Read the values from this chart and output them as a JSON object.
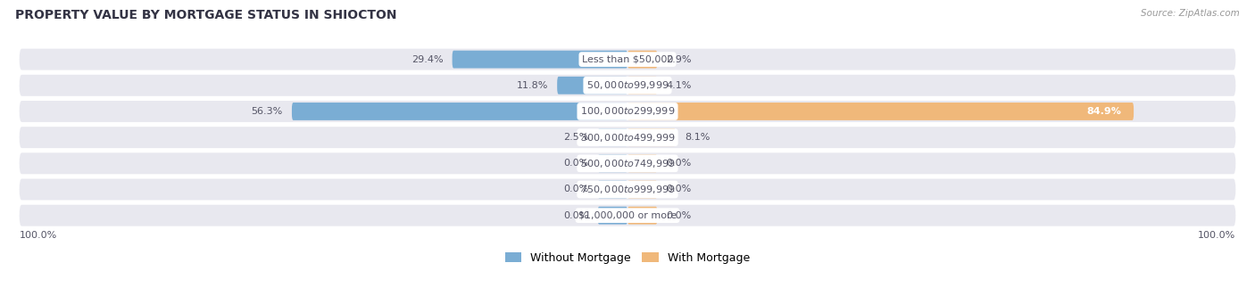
{
  "title": "PROPERTY VALUE BY MORTGAGE STATUS IN SHIOCTON",
  "source": "Source: ZipAtlas.com",
  "categories": [
    "Less than $50,000",
    "$50,000 to $99,999",
    "$100,000 to $299,999",
    "$300,000 to $499,999",
    "$500,000 to $749,999",
    "$750,000 to $999,999",
    "$1,000,000 or more"
  ],
  "without_mortgage": [
    29.4,
    11.8,
    56.3,
    2.5,
    0.0,
    0.0,
    0.0
  ],
  "with_mortgage": [
    2.9,
    4.1,
    84.9,
    8.1,
    0.0,
    0.0,
    0.0
  ],
  "without_color": "#7aadd4",
  "with_color": "#f0b87a",
  "bg_row_color": "#e8e8ef",
  "bg_row_color_alt": "#dddde5",
  "label_color": "#555566",
  "title_color": "#333344",
  "axis_label_left": "100.0%",
  "axis_label_right": "100.0%",
  "max_val": 100.0,
  "stub_val": 5.0,
  "legend_without": "Without Mortgage",
  "legend_with": "With Mortgage"
}
